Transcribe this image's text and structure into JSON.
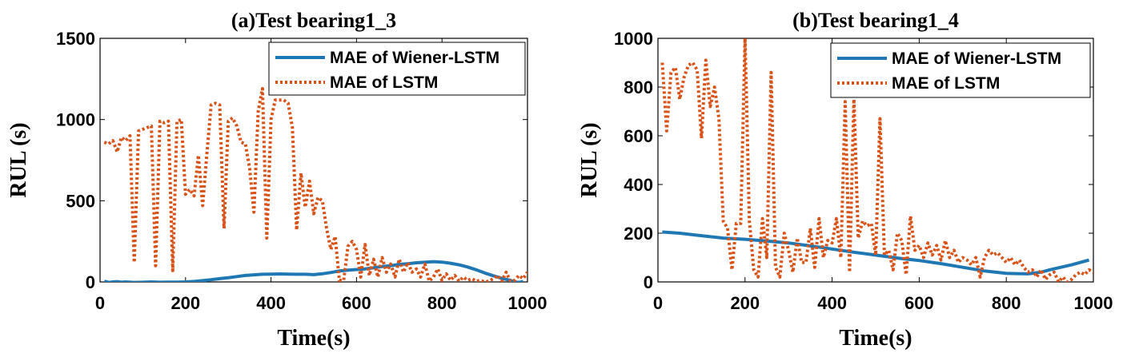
{
  "chart_data": [
    {
      "type": "line",
      "title": "(a)Test bearing1_3",
      "xlabel": "Time(s)",
      "ylabel": "RUL (s)",
      "xlim": [
        0,
        1000
      ],
      "ylim": [
        0,
        1500
      ],
      "xticks": [
        0,
        200,
        400,
        600,
        800,
        1000
      ],
      "yticks": [
        0,
        500,
        1000,
        1500
      ],
      "grid": false,
      "legend_position": "top-right",
      "series": [
        {
          "name": "MAE of Wiener-LSTM",
          "style": "solid",
          "color": "#1f77b4",
          "x": [
            10,
            20,
            30,
            40,
            50,
            60,
            80,
            100,
            120,
            140,
            160,
            180,
            200,
            220,
            240,
            260,
            280,
            300,
            320,
            340,
            360,
            380,
            400,
            420,
            440,
            460,
            480,
            500,
            520,
            540,
            560,
            580,
            600,
            620,
            640,
            660,
            680,
            700,
            720,
            740,
            760,
            780,
            800,
            820,
            840,
            860,
            880,
            900,
            920,
            940,
            960,
            970,
            980,
            990
          ],
          "y": [
            5,
            -3,
            0,
            2,
            -2,
            0,
            -3,
            -2,
            0,
            -2,
            -1,
            -1,
            0,
            3,
            8,
            14,
            20,
            26,
            33,
            40,
            44,
            47,
            48,
            49,
            48,
            47,
            47,
            45,
            50,
            58,
            68,
            73,
            76,
            80,
            87,
            95,
            100,
            108,
            112,
            118,
            121,
            125,
            122,
            115,
            105,
            92,
            75,
            55,
            38,
            22,
            10,
            0,
            -3,
            3
          ]
        },
        {
          "name": "MAE of LSTM",
          "style": "dotted",
          "color": "#d95319",
          "x": [
            10,
            20,
            30,
            40,
            50,
            60,
            70,
            80,
            90,
            100,
            110,
            120,
            130,
            140,
            150,
            160,
            170,
            180,
            190,
            200,
            210,
            220,
            230,
            240,
            250,
            260,
            270,
            280,
            290,
            300,
            310,
            320,
            330,
            340,
            350,
            360,
            370,
            380,
            390,
            400,
            410,
            420,
            430,
            440,
            450,
            460,
            470,
            480,
            490,
            500,
            510,
            520,
            530,
            540,
            550,
            560,
            570,
            580,
            590,
            600,
            610,
            620,
            630,
            640,
            650,
            660,
            670,
            680,
            690,
            700,
            710,
            720,
            730,
            740,
            750,
            760,
            770,
            780,
            790,
            800,
            810,
            820,
            830,
            840,
            850,
            860,
            870,
            880,
            890,
            900,
            910,
            920,
            930,
            940,
            950,
            960,
            970,
            980,
            990,
            1000
          ],
          "y": [
            860,
            850,
            870,
            800,
            890,
            870,
            900,
            120,
            930,
            940,
            950,
            960,
            100,
            990,
            980,
            990,
            70,
            990,
            1000,
            540,
            570,
            530,
            780,
            470,
            790,
            1090,
            1100,
            1090,
            330,
            990,
            1010,
            960,
            860,
            850,
            700,
            430,
            1050,
            1190,
            270,
            1000,
            1120,
            1120,
            1120,
            1100,
            950,
            320,
            670,
            460,
            620,
            420,
            520,
            500,
            330,
            200,
            280,
            10,
            10,
            220,
            250,
            200,
            30,
            230,
            40,
            140,
            30,
            150,
            60,
            110,
            30,
            140,
            60,
            120,
            60,
            80,
            30,
            110,
            5,
            30,
            80,
            10,
            50,
            10,
            40,
            5,
            30,
            10,
            20,
            5,
            10,
            0,
            5,
            20,
            40,
            5,
            60,
            5,
            10,
            40,
            20,
            60
          ]
        }
      ]
    },
    {
      "type": "line",
      "title": "(b)Test bearing1_4",
      "xlabel": "Time(s)",
      "ylabel": "RUL (s)",
      "xlim": [
        0,
        1000
      ],
      "ylim": [
        0,
        1000
      ],
      "xticks": [
        0,
        200,
        400,
        600,
        800,
        1000
      ],
      "yticks": [
        0,
        200,
        400,
        600,
        800,
        1000
      ],
      "grid": false,
      "legend_position": "top-right",
      "series": [
        {
          "name": "MAE of Wiener-LSTM",
          "style": "solid",
          "color": "#1f77b4",
          "x": [
            10,
            50,
            100,
            150,
            200,
            250,
            300,
            350,
            400,
            450,
            500,
            550,
            600,
            650,
            700,
            750,
            800,
            850,
            880,
            900,
            950,
            990
          ],
          "y": [
            205,
            200,
            190,
            180,
            175,
            168,
            160,
            148,
            135,
            122,
            110,
            98,
            88,
            75,
            60,
            45,
            35,
            33,
            40,
            50,
            70,
            90
          ]
        },
        {
          "name": "MAE of LSTM",
          "style": "dotted",
          "color": "#d95319",
          "x": [
            10,
            20,
            30,
            40,
            50,
            60,
            70,
            80,
            90,
            100,
            110,
            120,
            130,
            140,
            150,
            160,
            170,
            180,
            190,
            200,
            210,
            220,
            230,
            240,
            250,
            260,
            270,
            280,
            290,
            300,
            310,
            320,
            330,
            340,
            350,
            360,
            370,
            380,
            390,
            400,
            410,
            420,
            430,
            440,
            450,
            460,
            470,
            480,
            490,
            500,
            510,
            520,
            530,
            540,
            550,
            560,
            570,
            580,
            590,
            600,
            610,
            620,
            630,
            640,
            650,
            660,
            670,
            680,
            690,
            700,
            710,
            720,
            730,
            740,
            750,
            760,
            770,
            780,
            790,
            800,
            810,
            820,
            830,
            840,
            850,
            860,
            870,
            880,
            890,
            900,
            910,
            920,
            930,
            940,
            950,
            960,
            970,
            980,
            990,
            1000
          ],
          "y": [
            900,
            620,
            860,
            880,
            750,
            840,
            890,
            900,
            870,
            590,
            910,
            720,
            800,
            670,
            250,
            220,
            50,
            240,
            240,
            1000,
            250,
            50,
            20,
            260,
            100,
            860,
            60,
            20,
            200,
            130,
            40,
            180,
            80,
            80,
            220,
            60,
            260,
            100,
            170,
            160,
            260,
            100,
            740,
            40,
            750,
            180,
            250,
            230,
            240,
            110,
            670,
            110,
            130,
            50,
            200,
            170,
            30,
            270,
            130,
            150,
            100,
            160,
            110,
            150,
            90,
            170,
            100,
            130,
            80,
            100,
            90,
            70,
            100,
            20,
            100,
            130,
            110,
            120,
            100,
            80,
            100,
            70,
            90,
            60,
            40,
            50,
            20,
            50,
            10,
            30,
            40,
            0,
            20,
            0,
            10,
            30,
            40,
            30,
            50,
            40
          ]
        }
      ]
    }
  ]
}
